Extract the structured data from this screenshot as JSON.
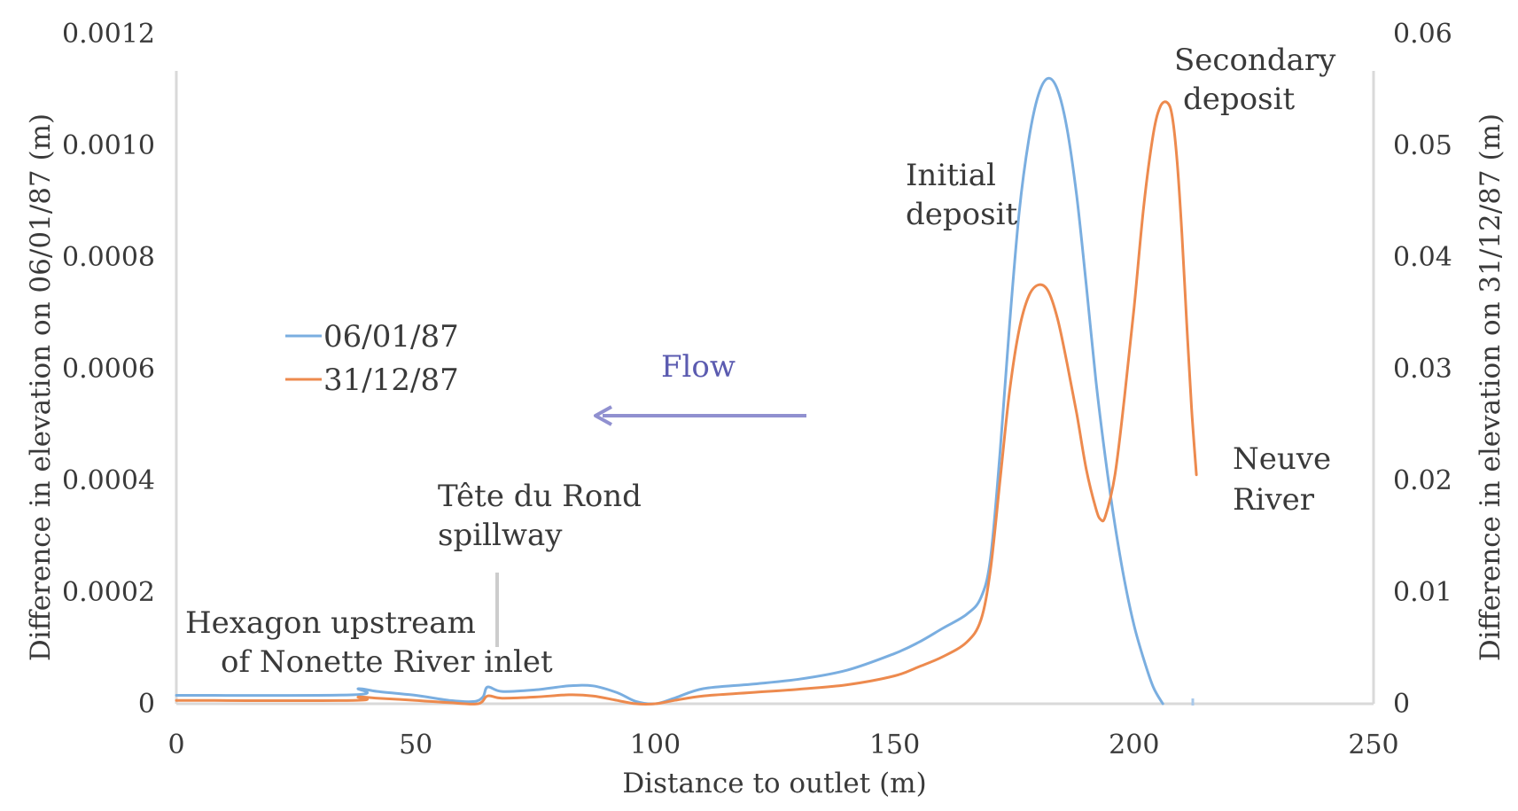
{
  "chart_data": {
    "type": "line",
    "xlabel": "Distance to outlet (m)",
    "ylabel_left": "Difference in elevation on 06/01/87 (m)",
    "ylabel_right": "Difference in elevation on 31/12/87 (m)",
    "xlim": [
      0,
      250
    ],
    "ylim_left": [
      0,
      0.0012
    ],
    "ylim_right": [
      0,
      0.06
    ],
    "x_ticks": [
      "0",
      "50",
      "100",
      "150",
      "200",
      "250"
    ],
    "y_left_ticks": [
      "0",
      "0.0002",
      "0.0004",
      "0.0006",
      "0.0008",
      "0.0010",
      "0.0012"
    ],
    "y_right_ticks": [
      "0",
      "0.01",
      "0.02",
      "0.03",
      "0.04",
      "0.05",
      "0.06"
    ],
    "grid": false,
    "legend_position": "left-middle",
    "series": [
      {
        "name": "06/01/87",
        "axis": "left",
        "color": "#7aaee0",
        "points": [
          [
            0,
            1.5e-05
          ],
          [
            37,
            1.6e-05
          ],
          [
            38,
            2.7e-05
          ],
          [
            42,
            2.2e-05
          ],
          [
            50,
            1.5e-05
          ],
          [
            57,
            6e-06
          ],
          [
            62,
            4e-06
          ],
          [
            64,
            1.2e-05
          ],
          [
            65,
            3e-05
          ],
          [
            68,
            2.2e-05
          ],
          [
            75,
            2.5e-05
          ],
          [
            82,
            3.2e-05
          ],
          [
            87,
            3.2e-05
          ],
          [
            92,
            2e-05
          ],
          [
            96,
            4e-06
          ],
          [
            100,
            0.0
          ],
          [
            104,
            1e-05
          ],
          [
            110,
            2.7e-05
          ],
          [
            120,
            3.5e-05
          ],
          [
            130,
            4.4e-05
          ],
          [
            140,
            6e-05
          ],
          [
            150,
            9e-05
          ],
          [
            155,
            0.00011
          ],
          [
            160,
            0.000135
          ],
          [
            165,
            0.00016
          ],
          [
            168,
            0.00019
          ],
          [
            170,
            0.00026
          ],
          [
            172,
            0.00045
          ],
          [
            174,
            0.00068
          ],
          [
            176,
            0.00088
          ],
          [
            178,
            0.00101
          ],
          [
            180,
            0.00109
          ],
          [
            182,
            0.00112
          ],
          [
            184,
            0.0011
          ],
          [
            186,
            0.00103
          ],
          [
            188,
            0.00091
          ],
          [
            190,
            0.00075
          ],
          [
            192,
            0.00058
          ],
          [
            194,
            0.00044
          ],
          [
            196,
            0.00032
          ],
          [
            198,
            0.00022
          ],
          [
            200,
            0.00014
          ],
          [
            202,
            8e-05
          ],
          [
            204,
            3e-05
          ],
          [
            206,
            0.0
          ]
        ]
      },
      {
        "name": "31/12/87",
        "axis": "right",
        "color": "#ed8a4e",
        "points": [
          [
            0,
            0.0003
          ],
          [
            37,
            0.0003
          ],
          [
            38,
            0.0006
          ],
          [
            42,
            0.0005
          ],
          [
            50,
            0.0003
          ],
          [
            57,
            0.0001
          ],
          [
            63,
            0.0
          ],
          [
            65,
            0.0007
          ],
          [
            68,
            0.0005
          ],
          [
            75,
            0.0006
          ],
          [
            82,
            0.0008
          ],
          [
            87,
            0.0007
          ],
          [
            92,
            0.0003
          ],
          [
            96,
            0.0
          ],
          [
            100,
            0.0
          ],
          [
            104,
            0.0003
          ],
          [
            110,
            0.0007
          ],
          [
            120,
            0.001
          ],
          [
            130,
            0.0013
          ],
          [
            140,
            0.0017
          ],
          [
            150,
            0.0025
          ],
          [
            155,
            0.0033
          ],
          [
            160,
            0.0042
          ],
          [
            165,
            0.0055
          ],
          [
            168,
            0.0075
          ],
          [
            170,
            0.012
          ],
          [
            172,
            0.02
          ],
          [
            174,
            0.028
          ],
          [
            176,
            0.0335
          ],
          [
            178,
            0.0365
          ],
          [
            180,
            0.0375
          ],
          [
            182,
            0.037
          ],
          [
            184,
            0.0345
          ],
          [
            186,
            0.0305
          ],
          [
            188,
            0.026
          ],
          [
            190,
            0.021
          ],
          [
            192,
            0.0175
          ],
          [
            193,
            0.0165
          ],
          [
            194,
            0.0168
          ],
          [
            196,
            0.0205
          ],
          [
            198,
            0.0275
          ],
          [
            200,
            0.0355
          ],
          [
            202,
            0.0445
          ],
          [
            204,
            0.051
          ],
          [
            205.5,
            0.0535
          ],
          [
            207,
            0.0538
          ],
          [
            208,
            0.0525
          ],
          [
            209,
            0.0485
          ],
          [
            210,
            0.042
          ],
          [
            211,
            0.034
          ],
          [
            212,
            0.0265
          ],
          [
            213,
            0.0205
          ]
        ]
      }
    ],
    "annotations": [
      {
        "lines": [
          "Secondary",
          "deposit"
        ]
      },
      {
        "lines": [
          "Initial",
          "deposit"
        ]
      },
      {
        "lines": [
          "Neuve",
          "River"
        ]
      },
      {
        "lines": [
          "Tête du Rond",
          "spillway"
        ]
      },
      {
        "lines": [
          "Hexagon upstream",
          "of Nonette River inlet"
        ]
      },
      {
        "lines": [
          "Flow"
        ]
      }
    ]
  }
}
